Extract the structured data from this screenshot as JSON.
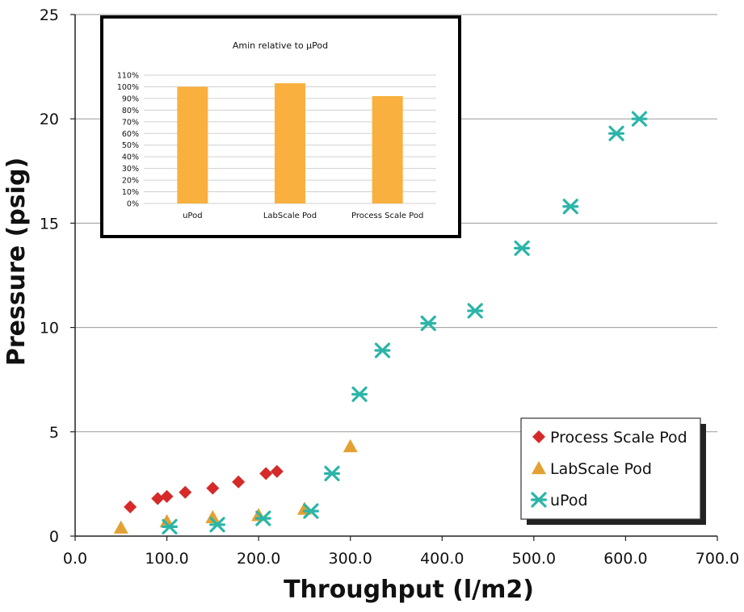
{
  "chart_data": [
    {
      "type": "scatter",
      "title": "",
      "xlabel": "Throughput (l/m2)",
      "ylabel": "Pressure (psig)",
      "xlim": [
        0,
        700
      ],
      "ylim": [
        0,
        25
      ],
      "x_ticks": [
        "0.0",
        "100.0",
        "200.0",
        "300.0",
        "400.0",
        "500.0",
        "600.0",
        "700.0"
      ],
      "y_ticks": [
        "0",
        "5",
        "10",
        "15",
        "20",
        "25"
      ],
      "grid": "horizontal",
      "legend_position": "bottom-right",
      "series": [
        {
          "name": "Process Scale Pod",
          "color": "#d62a2a",
          "marker": "diamond",
          "points": [
            [
              60,
              1.4
            ],
            [
              90,
              1.8
            ],
            [
              100,
              1.9
            ],
            [
              120,
              2.1
            ],
            [
              150,
              2.3
            ],
            [
              178,
              2.6
            ],
            [
              208,
              3.0
            ],
            [
              220,
              3.1
            ]
          ]
        },
        {
          "name": "LabScale Pod",
          "color": "#e3a132",
          "marker": "triangle",
          "points": [
            [
              50,
              0.4
            ],
            [
              100,
              0.7
            ],
            [
              150,
              0.9
            ],
            [
              200,
              1.0
            ],
            [
              250,
              1.3
            ],
            [
              300,
              4.3
            ]
          ]
        },
        {
          "name": "uPod",
          "color": "#2bb5a8",
          "marker": "star",
          "points": [
            [
              103,
              0.45
            ],
            [
              155,
              0.55
            ],
            [
              205,
              0.85
            ],
            [
              257,
              1.2
            ],
            [
              280,
              3.0
            ],
            [
              310,
              6.8
            ],
            [
              335,
              8.9
            ],
            [
              385,
              10.2
            ],
            [
              436,
              10.8
            ],
            [
              487,
              13.8
            ],
            [
              540,
              15.8
            ],
            [
              590,
              19.3
            ],
            [
              615,
              20.0
            ]
          ]
        }
      ]
    },
    {
      "type": "bar",
      "title": "Amin relative to µPod",
      "categories": [
        "uPod",
        "LabScale Pod",
        "Process Scale Pod"
      ],
      "values": [
        100,
        103,
        92
      ],
      "ylim": [
        0,
        110
      ],
      "y_ticks": [
        "0%",
        "10%",
        "20%",
        "30%",
        "40%",
        "50%",
        "60%",
        "70%",
        "80%",
        "90%",
        "100%",
        "110%"
      ],
      "grid": "horizontal",
      "bar_color": "#f9b03e"
    }
  ]
}
